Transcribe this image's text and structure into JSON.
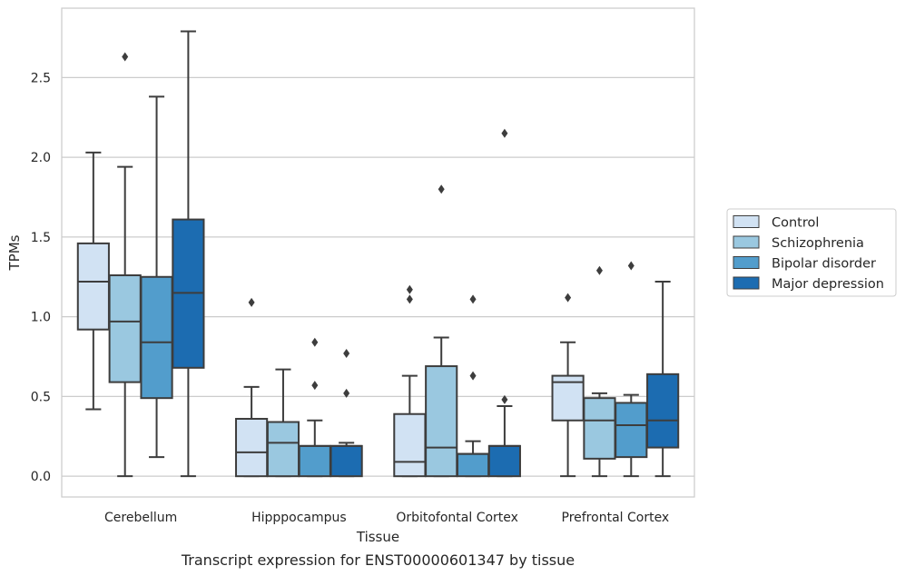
{
  "chart_data": {
    "type": "box",
    "title": "Transcript expression for ENST00000601347 by tissue",
    "xlabel": "Tissue",
    "ylabel": "TPMs",
    "ylim": [
      -0.13,
      2.935
    ],
    "yticks": [
      0.0,
      0.5,
      1.0,
      1.5,
      2.0,
      2.5
    ],
    "ytick_labels": [
      "0.0",
      "0.5",
      "1.0",
      "1.5",
      "2.0",
      "2.5"
    ],
    "grid": "horizontal",
    "legend_position": "right",
    "categories": [
      "Cerebellum",
      "Hipppocampus",
      "Orbitofontal Cortex",
      "Prefrontal Cortex"
    ],
    "series": [
      {
        "name": "Control",
        "color": "#d1e2f3",
        "boxes": [
          {
            "whislo": 0.42,
            "q1": 0.92,
            "med": 1.22,
            "q3": 1.46,
            "whishi": 2.03,
            "fliers": []
          },
          {
            "whislo": 0.0,
            "q1": 0.0,
            "med": 0.15,
            "q3": 0.36,
            "whishi": 0.56,
            "fliers": [
              1.09
            ]
          },
          {
            "whislo": 0.0,
            "q1": 0.0,
            "med": 0.09,
            "q3": 0.39,
            "whishi": 0.63,
            "fliers": [
              1.11,
              1.17
            ]
          },
          {
            "whislo": 0.0,
            "q1": 0.35,
            "med": 0.59,
            "q3": 0.63,
            "whishi": 0.84,
            "fliers": [
              1.12
            ]
          }
        ]
      },
      {
        "name": "Schizophrenia",
        "color": "#9ac8e0",
        "boxes": [
          {
            "whislo": 0.0,
            "q1": 0.59,
            "med": 0.97,
            "q3": 1.26,
            "whishi": 1.94,
            "fliers": [
              2.63
            ]
          },
          {
            "whislo": 0.0,
            "q1": 0.0,
            "med": 0.21,
            "q3": 0.34,
            "whishi": 0.67,
            "fliers": []
          },
          {
            "whislo": 0.0,
            "q1": 0.0,
            "med": 0.18,
            "q3": 0.69,
            "whishi": 0.87,
            "fliers": [
              1.8
            ]
          },
          {
            "whislo": 0.0,
            "q1": 0.11,
            "med": 0.35,
            "q3": 0.49,
            "whishi": 0.52,
            "fliers": [
              1.29
            ]
          }
        ]
      },
      {
        "name": "Bipolar disorder",
        "color": "#529dcc",
        "boxes": [
          {
            "whislo": 0.12,
            "q1": 0.49,
            "med": 0.84,
            "q3": 1.25,
            "whishi": 2.38,
            "fliers": []
          },
          {
            "whislo": 0.0,
            "q1": 0.0,
            "med": 0.19,
            "q3": 0.19,
            "whishi": 0.35,
            "fliers": [
              0.57,
              0.84
            ]
          },
          {
            "whislo": 0.0,
            "q1": 0.0,
            "med": 0.14,
            "q3": 0.14,
            "whishi": 0.22,
            "fliers": [
              0.63,
              1.11
            ]
          },
          {
            "whislo": 0.0,
            "q1": 0.12,
            "med": 0.32,
            "q3": 0.46,
            "whishi": 0.51,
            "fliers": [
              1.32
            ]
          }
        ]
      },
      {
        "name": "Major depression",
        "color": "#1c6cb1",
        "boxes": [
          {
            "whislo": 0.0,
            "q1": 0.68,
            "med": 1.15,
            "q3": 1.61,
            "whishi": 2.79,
            "fliers": []
          },
          {
            "whislo": 0.0,
            "q1": 0.0,
            "med": 0.19,
            "q3": 0.19,
            "whishi": 0.21,
            "fliers": [
              0.52,
              0.77
            ]
          },
          {
            "whislo": 0.0,
            "q1": 0.0,
            "med": 0.19,
            "q3": 0.19,
            "whishi": 0.44,
            "fliers": [
              0.48,
              2.15
            ]
          },
          {
            "whislo": 0.0,
            "q1": 0.18,
            "med": 0.35,
            "q3": 0.64,
            "whishi": 1.22,
            "fliers": []
          }
        ]
      }
    ]
  }
}
